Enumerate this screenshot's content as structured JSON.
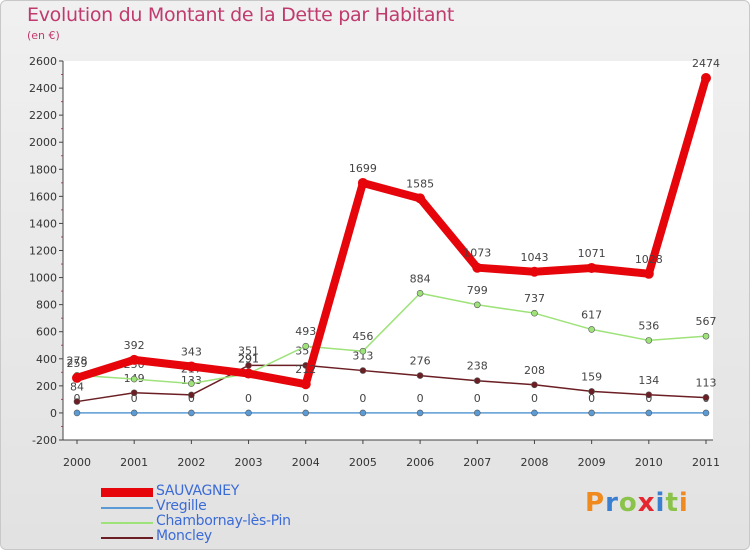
{
  "header": {
    "title": "Evolution du Montant de la Dette par Habitant",
    "subtitle": "(en €)"
  },
  "brand": {
    "text": "Proxiti",
    "letter_colors": [
      "#f08a1e",
      "#3a7fd0",
      "#8bc34a",
      "#e5262e",
      "#3a7fd0",
      "#8bc34a",
      "#f08a1e"
    ]
  },
  "chart_data": {
    "type": "line",
    "title": "Evolution du Montant de la Dette par Habitant",
    "subtitle": "(en €)",
    "xlabel": "",
    "ylabel": "",
    "ylim": [
      -200,
      2600
    ],
    "ytick_step": 200,
    "grid": false,
    "categories": [
      "2000",
      "2001",
      "2002",
      "2003",
      "2004",
      "2005",
      "2006",
      "2007",
      "2008",
      "2009",
      "2010",
      "2011"
    ],
    "yticks": [
      "-200",
      "0",
      "200",
      "400",
      "600",
      "800",
      "1000",
      "1200",
      "1400",
      "1600",
      "1800",
      "2000",
      "2200",
      "2400",
      "2600"
    ],
    "series": [
      {
        "name": "Vregille",
        "color": "#5b9bd5",
        "values": [
          0,
          0,
          0,
          0,
          0,
          0,
          0,
          0,
          0,
          0,
          0,
          0
        ],
        "labels": [
          "0",
          "0",
          "0",
          "0",
          "0",
          "0",
          "0",
          "0",
          "0",
          "0",
          "0",
          "0"
        ]
      },
      {
        "name": "Moncley",
        "color": "#6b1f24",
        "values": [
          84,
          149,
          133,
          351,
          351,
          313,
          276,
          238,
          208,
          159,
          134,
          113
        ],
        "labels": [
          "84",
          "149",
          "133",
          "351",
          "351",
          "313",
          "276",
          "238",
          "208",
          "159",
          "134",
          "113"
        ]
      },
      {
        "name": "Chambornay-lès-Pin",
        "color": "#9ee27a",
        "values": [
          278,
          250,
          217,
          291,
          493,
          456,
          884,
          799,
          737,
          617,
          536,
          567
        ],
        "labels": [
          "278",
          "250",
          "217",
          "291",
          "493",
          "456",
          "884",
          "799",
          "737",
          "617",
          "536",
          "567"
        ]
      },
      {
        "name": "SAUVAGNEY",
        "color": "#e5050a",
        "values": [
          259,
          392,
          343,
          291,
          212,
          1699,
          1585,
          1073,
          1043,
          1071,
          1028,
          2474
        ],
        "labels": [
          "259",
          "392",
          "343",
          "291",
          "212",
          "1699",
          "1585",
          "1073",
          "1043",
          "1071",
          "1028",
          "2474"
        ]
      }
    ]
  },
  "legend": {
    "items": [
      {
        "label": "SAUVAGNEY",
        "color": "#e5050a"
      },
      {
        "label": "Vregille",
        "color": "#5b9bd5"
      },
      {
        "label": "Chambornay-lès-Pin",
        "color": "#9ee27a"
      },
      {
        "label": "Moncley",
        "color": "#6b1f24"
      }
    ]
  }
}
